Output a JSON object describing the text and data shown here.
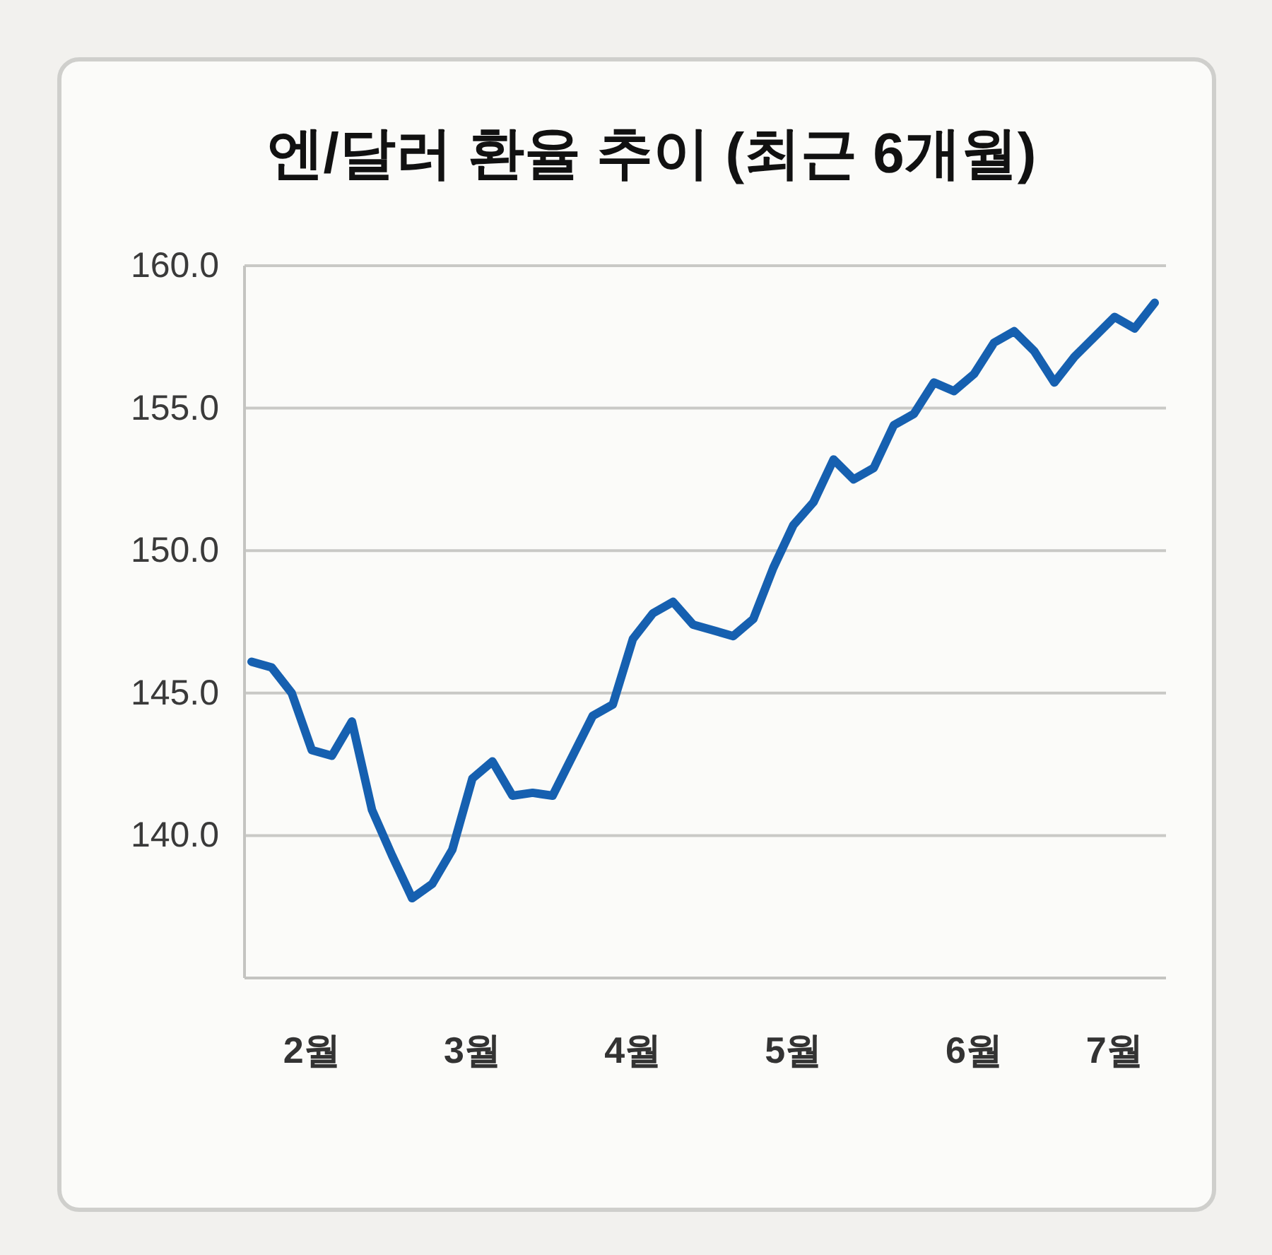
{
  "chart_data": {
    "type": "line",
    "title": "엔/달러 환율 추이 (최근 6개월)",
    "categories": [
      null,
      null,
      null,
      "2월",
      null,
      null,
      null,
      null,
      null,
      null,
      null,
      "3월",
      null,
      null,
      null,
      null,
      null,
      null,
      null,
      "4월",
      null,
      null,
      null,
      null,
      null,
      null,
      null,
      "5월",
      null,
      null,
      null,
      null,
      null,
      null,
      null,
      null,
      "6월",
      null,
      null,
      null,
      null,
      null,
      null,
      "7월",
      null,
      null
    ],
    "series": [
      {
        "color": "#1660b0",
        "values": [
          146.1,
          145.9,
          145.0,
          143.0,
          142.8,
          144.0,
          140.9,
          139.3,
          137.8,
          138.3,
          139.5,
          142.0,
          142.6,
          141.4,
          141.5,
          141.4,
          142.8,
          144.2,
          144.6,
          146.9,
          147.8,
          148.2,
          147.4,
          147.2,
          147.0,
          147.6,
          149.4,
          150.9,
          151.7,
          153.2,
          152.5,
          152.9,
          154.4,
          154.8,
          155.9,
          155.6,
          156.2,
          157.3,
          157.7,
          157.0,
          155.9,
          156.8,
          157.5,
          158.2,
          157.8,
          158.7
        ]
      }
    ],
    "ylim": [
      135,
      160
    ],
    "yticks": [
      {
        "value": 140,
        "label": "140.0"
      },
      {
        "value": 145,
        "label": "145.0"
      },
      {
        "value": 150,
        "label": "150.0"
      },
      {
        "value": 155,
        "label": "155.0"
      },
      {
        "value": 160,
        "label": "160.0"
      }
    ],
    "grid": "y",
    "marker": "none",
    "line_style": "solid"
  }
}
